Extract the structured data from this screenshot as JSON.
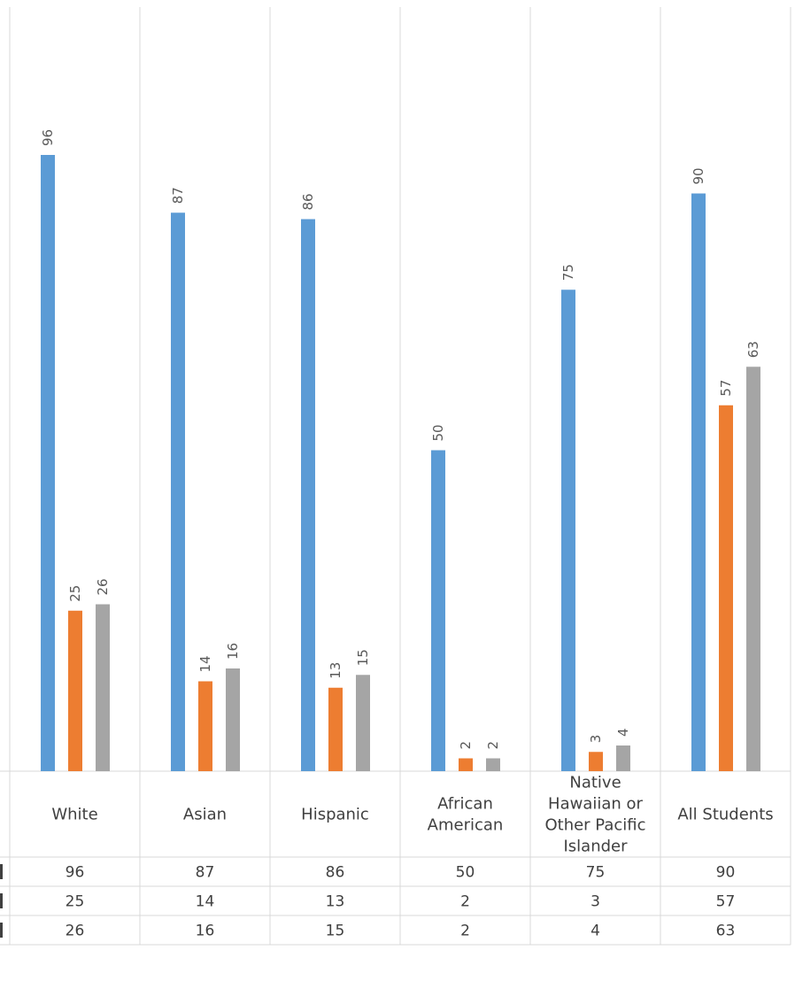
{
  "chart_data": {
    "type": "bar",
    "categories": [
      "White",
      "Asian",
      "Hispanic",
      "African American",
      "Native Hawaiian or Other Pacific Islander",
      "All Students"
    ],
    "category_lines": [
      [
        "White"
      ],
      [
        "Asian"
      ],
      [
        "Hispanic"
      ],
      [
        "African",
        "American"
      ],
      [
        "Native",
        "Hawaiian or",
        "Other Pacific",
        "Islander"
      ],
      [
        "All Students"
      ]
    ],
    "series": [
      {
        "values": [
          96,
          87,
          86,
          50,
          75,
          90
        ],
        "color": "#5B9BD5"
      },
      {
        "values": [
          25,
          14,
          13,
          2,
          3,
          57
        ],
        "color": "#ED7D31"
      },
      {
        "values": [
          26,
          16,
          15,
          2,
          4,
          63
        ],
        "color": "#A5A5A5"
      }
    ],
    "ylim": [
      0,
      100
    ],
    "title": "",
    "xlabel": "",
    "ylabel": "",
    "grid": "vertical category separators",
    "data_table": true,
    "bar_value_labels": "rotated, above bars"
  }
}
